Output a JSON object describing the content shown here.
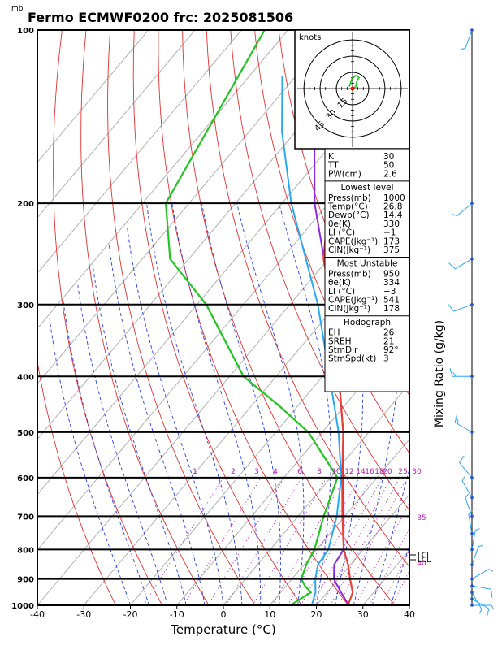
{
  "chart_data": {
    "type": "skew-t",
    "title": "Fermo ECMWF0200 frc: 2025081506",
    "pressure_unit": "mb",
    "xlabel": "Temperature (°C)",
    "xticks": [
      -40,
      -30,
      -20,
      -10,
      0,
      10,
      20,
      30,
      40
    ],
    "xlim": [
      -40,
      40
    ],
    "pressure_levels": [
      100,
      200,
      300,
      400,
      500,
      600,
      700,
      800,
      900,
      1000
    ],
    "mixing_ratio_label": "Mixing Ratio (g/kg)",
    "mixing_ratio_values": [
      "1",
      "2",
      "3",
      "4",
      "6",
      "8",
      "10",
      "12",
      "14",
      "16",
      "18",
      "20",
      "25",
      "30",
      "35",
      "40"
    ],
    "lcl_label": "LCL",
    "colors": {
      "temperature": "#e8403a",
      "dewpoint": "#22c322",
      "parcel": "#8a2be2",
      "wetbulb": "#29a8f0",
      "dry_adiabat": "#e23030",
      "moist_adiabat": "#2a3fe0",
      "isotherm": "#b0b0b0",
      "mixing": "#b020b0"
    },
    "temperature_profile": [
      [
        1000,
        26.8
      ],
      [
        950,
        25.5
      ],
      [
        900,
        22.5
      ],
      [
        850,
        19.5
      ],
      [
        800,
        15.8
      ],
      [
        700,
        9.5
      ],
      [
        600,
        2.5
      ],
      [
        500,
        -5.5
      ],
      [
        400,
        -16.5
      ],
      [
        300,
        -31
      ],
      [
        250,
        -41
      ],
      [
        200,
        -50
      ],
      [
        150,
        -58
      ],
      [
        100,
        -67
      ]
    ],
    "dewpoint_profile": [
      [
        1000,
        14.4
      ],
      [
        950,
        16.5
      ],
      [
        925,
        14
      ],
      [
        900,
        12
      ],
      [
        850,
        10.5
      ],
      [
        800,
        9.5
      ],
      [
        700,
        5.5
      ],
      [
        600,
        1.5
      ],
      [
        500,
        -13
      ],
      [
        450,
        -24
      ],
      [
        400,
        -37
      ],
      [
        300,
        -58
      ],
      [
        250,
        -74
      ],
      [
        200,
        -85
      ],
      [
        100,
        -95
      ]
    ],
    "parcel_profile": [
      [
        1000,
        27
      ],
      [
        950,
        23
      ],
      [
        900,
        19
      ],
      [
        850,
        16.5
      ],
      [
        800,
        15.8
      ],
      [
        700,
        9.8
      ],
      [
        600,
        2.8
      ],
      [
        500,
        -5.5
      ],
      [
        400,
        -16.5
      ],
      [
        300,
        -31
      ],
      [
        200,
        -53
      ],
      [
        150,
        -66
      ],
      [
        120,
        -76
      ]
    ],
    "wetbulb_profile": [
      [
        1000,
        19
      ],
      [
        950,
        17.5
      ],
      [
        900,
        15
      ],
      [
        850,
        13
      ],
      [
        800,
        12.5
      ],
      [
        700,
        8.3
      ],
      [
        600,
        2.3
      ],
      [
        500,
        -6.5
      ],
      [
        400,
        -18.5
      ],
      [
        300,
        -34
      ],
      [
        200,
        -58
      ],
      [
        150,
        -73
      ],
      [
        120,
        -83
      ]
    ],
    "wind_barbs": [
      {
        "p": 1000,
        "dir": 90,
        "spd": 5
      },
      {
        "p": 975,
        "dir": 120,
        "spd": 10
      },
      {
        "p": 950,
        "dir": 150,
        "spd": 5
      },
      {
        "p": 925,
        "dir": 100,
        "spd": 10
      },
      {
        "p": 900,
        "dir": 60,
        "spd": 5
      },
      {
        "p": 850,
        "dir": 20,
        "spd": 5
      },
      {
        "p": 800,
        "dir": 10,
        "spd": 5
      },
      {
        "p": 750,
        "dir": 350,
        "spd": 5
      },
      {
        "p": 700,
        "dir": 340,
        "spd": 5
      },
      {
        "p": 650,
        "dir": 330,
        "spd": 5
      },
      {
        "p": 600,
        "dir": 320,
        "spd": 10
      },
      {
        "p": 500,
        "dir": 300,
        "spd": 15
      },
      {
        "p": 400,
        "dir": 270,
        "spd": 15
      },
      {
        "p": 300,
        "dir": 250,
        "spd": 10
      },
      {
        "p": 250,
        "dir": 240,
        "spd": 10
      },
      {
        "p": 200,
        "dir": 230,
        "spd": 5
      },
      {
        "p": 100,
        "dir": 200,
        "spd": 5
      }
    ],
    "hodograph": {
      "unit_label": "knots",
      "ring_labels": [
        "15",
        "30",
        "45"
      ],
      "points": [
        [
          0,
          0
        ],
        [
          2,
          -1
        ],
        [
          5,
          -3
        ],
        [
          6,
          -9
        ],
        [
          8,
          -14
        ],
        [
          10,
          -17
        ],
        [
          5,
          -20
        ],
        [
          -1,
          -15
        ],
        [
          -2,
          -12
        ],
        [
          -4,
          -6
        ],
        [
          -5,
          -3
        ]
      ],
      "color": "#22c322"
    },
    "indices": {
      "general": [
        {
          "label": "K",
          "value": "30"
        },
        {
          "label": "TT",
          "value": "50"
        },
        {
          "label": "PW(cm)",
          "value": "2.6"
        }
      ],
      "lowest_level": {
        "heading": "Lowest level",
        "rows": [
          {
            "label": "Press(mb)",
            "value": "1000"
          },
          {
            "label": "Temp(°C)",
            "value": "26.8"
          },
          {
            "label": "Dewp(°C)",
            "value": "14.4"
          },
          {
            "label": "θe(K)",
            "value": "330"
          },
          {
            "label": "LI (°C)",
            "value": "−1"
          },
          {
            "label": "CAPE(Jkg⁻¹)",
            "value": "173"
          },
          {
            "label": "CIN(Jkg⁻¹)",
            "value": "375"
          }
        ]
      },
      "most_unstable": {
        "heading": "Most Unstable",
        "rows": [
          {
            "label": "Press(mb)",
            "value": "950"
          },
          {
            "label": "θe(K)",
            "value": "334"
          },
          {
            "label": "LI (°C)",
            "value": "−3"
          },
          {
            "label": "CAPE(Jkg⁻¹)",
            "value": "541"
          },
          {
            "label": "CIN(Jkg⁻¹)",
            "value": "178"
          }
        ]
      },
      "hodograph_idx": {
        "heading": "Hodograph",
        "rows": [
          {
            "label": "EH",
            "value": "26"
          },
          {
            "label": "SREH",
            "value": "21"
          },
          {
            "label": "StmDir",
            "value": "92°"
          },
          {
            "label": "StmSpd(kt)",
            "value": "3"
          }
        ]
      }
    }
  }
}
